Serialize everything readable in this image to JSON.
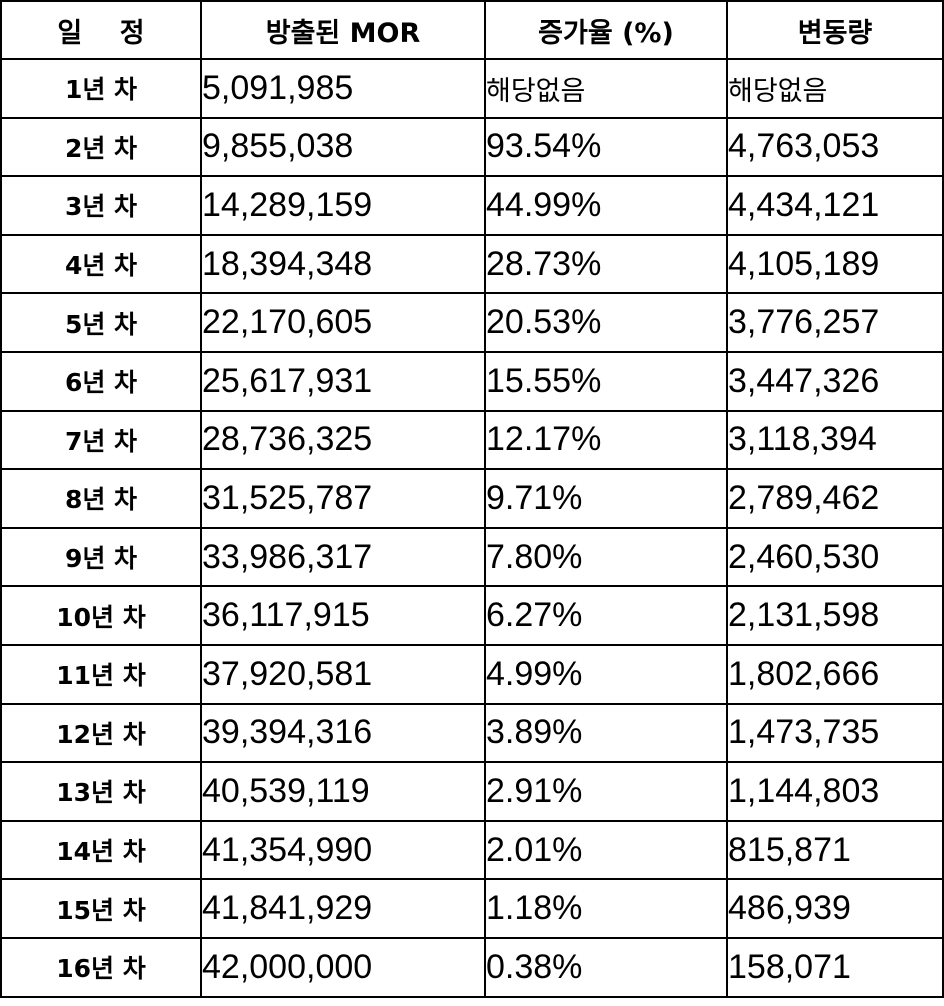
{
  "table": {
    "headers": [
      "일    정",
      "방출된 MOR",
      "증가율 (%)",
      "변동량"
    ],
    "rows": [
      {
        "period": "1년 차",
        "emitted": "5,091,985",
        "rate": "해당없음",
        "change": "해당없음"
      },
      {
        "period": "2년 차",
        "emitted": "9,855,038",
        "rate": "93.54%",
        "change": "4,763,053"
      },
      {
        "period": "3년 차",
        "emitted": "14,289,159",
        "rate": "44.99%",
        "change": "4,434,121"
      },
      {
        "period": "4년 차",
        "emitted": "18,394,348",
        "rate": "28.73%",
        "change": "4,105,189"
      },
      {
        "period": "5년 차",
        "emitted": "22,170,605",
        "rate": "20.53%",
        "change": "3,776,257"
      },
      {
        "period": "6년 차",
        "emitted": "25,617,931",
        "rate": "15.55%",
        "change": "3,447,326"
      },
      {
        "period": "7년 차",
        "emitted": "28,736,325",
        "rate": "12.17%",
        "change": "3,118,394"
      },
      {
        "period": "8년 차",
        "emitted": "31,525,787",
        "rate": "9.71%",
        "change": "2,789,462"
      },
      {
        "period": "9년 차",
        "emitted": "33,986,317",
        "rate": "7.80%",
        "change": "2,460,530"
      },
      {
        "period": "10년 차",
        "emitted": "36,117,915",
        "rate": "6.27%",
        "change": "2,131,598"
      },
      {
        "period": "11년 차",
        "emitted": "37,920,581",
        "rate": "4.99%",
        "change": "1,802,666"
      },
      {
        "period": "12년 차",
        "emitted": "39,394,316",
        "rate": "3.89%",
        "change": "1,473,735"
      },
      {
        "period": "13년 차",
        "emitted": "40,539,119",
        "rate": "2.91%",
        "change": "1,144,803"
      },
      {
        "period": "14년 차",
        "emitted": "41,354,990",
        "rate": "2.01%",
        "change": "815,871"
      },
      {
        "period": "15년 차",
        "emitted": "41,841,929",
        "rate": "1.18%",
        "change": "486,939"
      },
      {
        "period": "16년 차",
        "emitted": "42,000,000",
        "rate": "0.38%",
        "change": "158,071"
      }
    ]
  }
}
